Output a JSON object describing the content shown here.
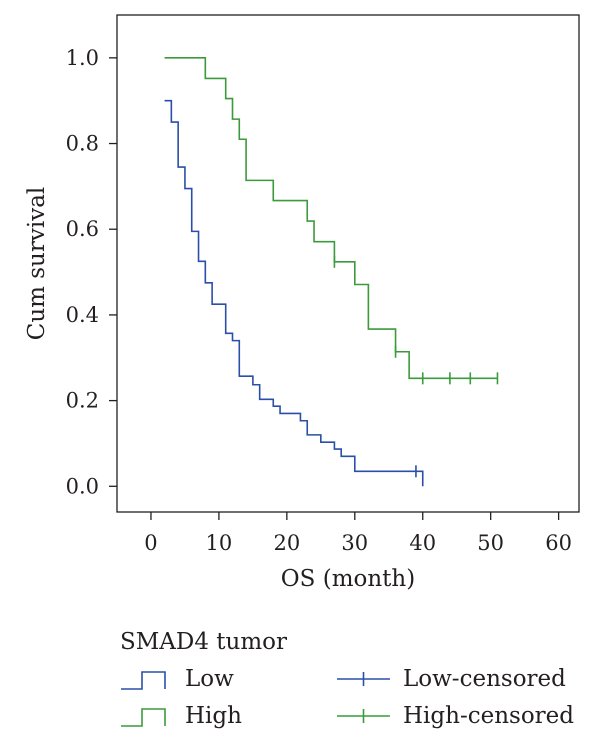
{
  "chart_data": {
    "type": "line",
    "step": true,
    "xlabel": "OS (month)",
    "ylabel": "Cum survival",
    "xlim": [
      -5,
      63
    ],
    "ylim": [
      -0.06,
      1.1
    ],
    "xticks": [
      0,
      10,
      20,
      30,
      40,
      50,
      60
    ],
    "yticks": [
      0.0,
      0.2,
      0.4,
      0.6,
      0.8,
      1.0
    ],
    "xtick_labels": [
      "0",
      "10",
      "20",
      "30",
      "40",
      "50",
      "60"
    ],
    "ytick_labels": [
      "0.0",
      "0.2",
      "0.4",
      "0.6",
      "0.8",
      "1.0"
    ],
    "grid": false,
    "legend_title": "SMAD4 tumor",
    "legend_position": "bottom",
    "series": [
      {
        "name": "Low",
        "color": "#2b4fa8",
        "points": [
          [
            2,
            0.9
          ],
          [
            3,
            0.85
          ],
          [
            4,
            0.745
          ],
          [
            5,
            0.695
          ],
          [
            6,
            0.595
          ],
          [
            7,
            0.525
          ],
          [
            8,
            0.475
          ],
          [
            9,
            0.425
          ],
          [
            11,
            0.357
          ],
          [
            12,
            0.34
          ],
          [
            13,
            0.257
          ],
          [
            15,
            0.237
          ],
          [
            16,
            0.203
          ],
          [
            18,
            0.187
          ],
          [
            19,
            0.17
          ],
          [
            22,
            0.153
          ],
          [
            23,
            0.12
          ],
          [
            25,
            0.103
          ],
          [
            27,
            0.087
          ],
          [
            28,
            0.07
          ],
          [
            30,
            0.035
          ],
          [
            40,
            0.0
          ]
        ]
      },
      {
        "name": "High",
        "color": "#3b9a3b",
        "points": [
          [
            2,
            1.0
          ],
          [
            8,
            0.952
          ],
          [
            11,
            0.905
          ],
          [
            12,
            0.857
          ],
          [
            13,
            0.81
          ],
          [
            14,
            0.714
          ],
          [
            18,
            0.667
          ],
          [
            23,
            0.619
          ],
          [
            24,
            0.571
          ],
          [
            27,
            0.524
          ],
          [
            30,
            0.471
          ],
          [
            32,
            0.367
          ],
          [
            36,
            0.314
          ],
          [
            38,
            0.252
          ],
          [
            51,
            0.252
          ]
        ]
      }
    ],
    "censored": [
      {
        "name": "Low-censored",
        "color": "#2b4fa8",
        "points": [
          [
            39,
            0.035
          ]
        ]
      },
      {
        "name": "High-censored",
        "color": "#3b9a3b",
        "points": [
          [
            27,
            0.524
          ],
          [
            36,
            0.314
          ],
          [
            40,
            0.252
          ],
          [
            44,
            0.252
          ],
          [
            47,
            0.252
          ],
          [
            51,
            0.252
          ]
        ]
      }
    ]
  }
}
